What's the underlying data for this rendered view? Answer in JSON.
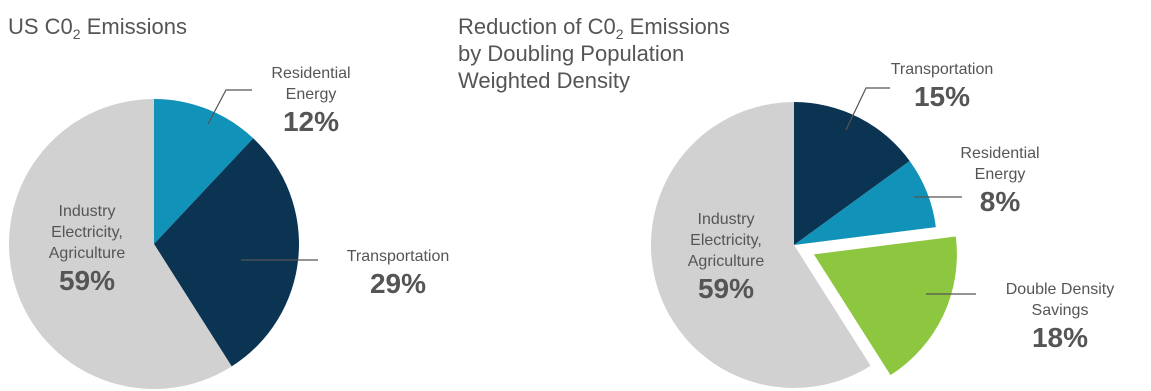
{
  "chart_data": [
    {
      "type": "pie",
      "title": "US C0",
      "title_subscript": "2",
      "title_suffix": " Emissions",
      "slices": [
        {
          "label_lines": [
            "Residential",
            "Energy"
          ],
          "value": 12,
          "value_label": "12%",
          "color": "#1192b8"
        },
        {
          "label_lines": [
            "Transportation"
          ],
          "value": 29,
          "value_label": "29%",
          "color": "#0b3352"
        },
        {
          "label_lines": [
            "Industry",
            "Electricity,",
            "Agriculture"
          ],
          "value": 59,
          "value_label": "59%",
          "color": "#d1d1d1"
        }
      ]
    },
    {
      "type": "pie",
      "title_lines": [
        {
          "text": "Reduction of C0",
          "subscript": "2",
          "suffix": " Emissions"
        },
        {
          "text": "by Doubling Population",
          "subscript": "",
          "suffix": ""
        },
        {
          "text": "Weighted Density",
          "subscript": "",
          "suffix": ""
        }
      ],
      "slices": [
        {
          "label_lines": [
            "Transportation"
          ],
          "value": 15,
          "value_label": "15%",
          "color": "#0b3352"
        },
        {
          "label_lines": [
            "Residential",
            "Energy"
          ],
          "value": 8,
          "value_label": "8%",
          "color": "#1192b8"
        },
        {
          "label_lines": [
            "Double Density",
            "Savings"
          ],
          "value": 18,
          "value_label": "18%",
          "color": "#8dc63f",
          "exploded": true
        },
        {
          "label_lines": [
            "Industry",
            "Electricity,",
            "Agriculture"
          ],
          "value": 59,
          "value_label": "59%",
          "color": "#d1d1d1"
        }
      ]
    }
  ]
}
